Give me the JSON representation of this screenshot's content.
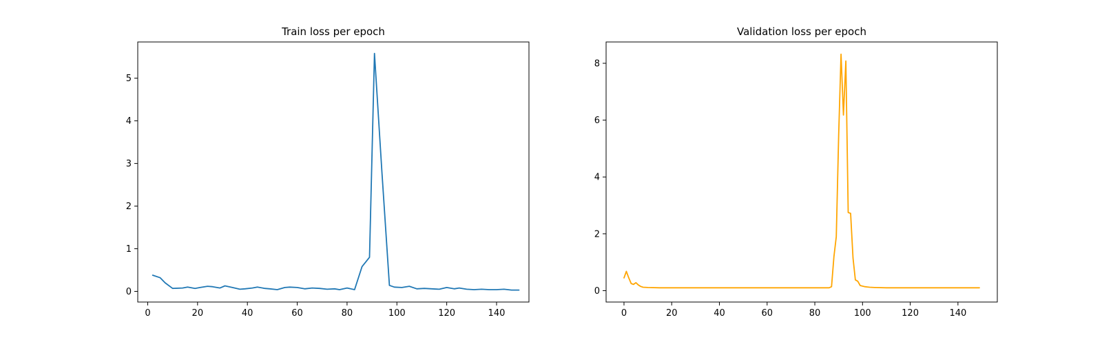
{
  "chart_data": [
    {
      "type": "line",
      "title": "Train loss per epoch",
      "xlabel": "",
      "ylabel": "",
      "xlim": [
        -4,
        153
      ],
      "ylim": [
        -0.25,
        5.85
      ],
      "xticks": [
        0,
        20,
        40,
        60,
        80,
        100,
        120,
        140
      ],
      "yticks": [
        0,
        1,
        2,
        3,
        4,
        5
      ],
      "grid": false,
      "color": "#1f77b4",
      "series": [
        {
          "x": [
            2,
            5,
            7,
            10,
            14,
            16,
            19,
            21,
            24,
            26,
            29,
            31,
            34,
            37,
            39,
            42,
            44,
            47,
            49,
            52,
            55,
            57,
            60,
            63,
            66,
            69,
            72,
            75,
            77,
            80,
            83,
            86,
            89,
            91,
            94,
            97,
            99,
            102,
            105,
            108,
            111,
            114,
            117,
            120,
            123,
            125,
            128,
            131,
            134,
            137,
            140,
            143,
            146,
            149
          ],
          "y": [
            0.38,
            0.32,
            0.2,
            0.07,
            0.08,
            0.1,
            0.07,
            0.09,
            0.12,
            0.11,
            0.08,
            0.13,
            0.09,
            0.05,
            0.06,
            0.08,
            0.1,
            0.07,
            0.06,
            0.04,
            0.09,
            0.1,
            0.09,
            0.06,
            0.08,
            0.07,
            0.05,
            0.06,
            0.04,
            0.08,
            0.04,
            0.58,
            0.8,
            5.58,
            2.8,
            0.14,
            0.1,
            0.09,
            0.12,
            0.06,
            0.07,
            0.06,
            0.05,
            0.09,
            0.06,
            0.08,
            0.05,
            0.04,
            0.05,
            0.04,
            0.04,
            0.05,
            0.03,
            0.03
          ]
        }
      ]
    },
    {
      "type": "line",
      "title": "Validation loss per epoch",
      "xlabel": "",
      "ylabel": "",
      "xlim": [
        -7.5,
        156.5
      ],
      "ylim": [
        -0.4,
        8.75
      ],
      "xticks": [
        0,
        20,
        40,
        60,
        80,
        100,
        120,
        140
      ],
      "yticks": [
        0,
        2,
        4,
        6,
        8
      ],
      "grid": false,
      "color": "#ffa500",
      "series": [
        {
          "x": [
            0,
            1,
            2,
            3,
            4,
            5,
            6,
            7,
            8,
            10,
            15,
            20,
            25,
            30,
            35,
            40,
            45,
            50,
            55,
            60,
            65,
            70,
            75,
            80,
            85,
            86,
            87,
            88,
            89,
            90,
            91,
            92,
            93,
            94,
            95,
            96,
            97,
            98,
            99,
            100,
            101,
            102,
            103,
            105,
            110,
            120,
            130,
            140,
            149
          ],
          "y": [
            0.45,
            0.68,
            0.45,
            0.25,
            0.22,
            0.28,
            0.2,
            0.15,
            0.12,
            0.11,
            0.1,
            0.1,
            0.1,
            0.1,
            0.1,
            0.1,
            0.1,
            0.1,
            0.1,
            0.1,
            0.1,
            0.1,
            0.1,
            0.1,
            0.1,
            0.1,
            0.14,
            1.2,
            1.9,
            5.5,
            8.32,
            6.18,
            8.08,
            2.75,
            2.72,
            1.15,
            0.38,
            0.33,
            0.18,
            0.16,
            0.14,
            0.13,
            0.12,
            0.11,
            0.1,
            0.1,
            0.1,
            0.1,
            0.1
          ]
        }
      ]
    }
  ]
}
